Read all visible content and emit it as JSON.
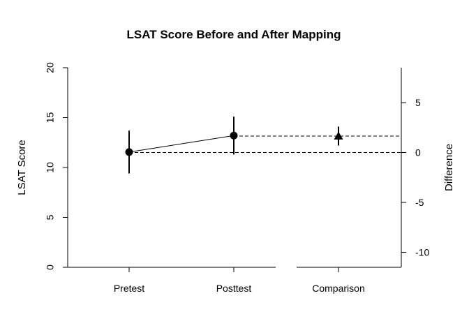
{
  "chart_data": {
    "type": "scatter",
    "title": "LSAT Score Before and After Mapping",
    "ylabel": "LSAT Score",
    "y2label": "Difference",
    "ylim": [
      0,
      20
    ],
    "y2lim": [
      -11.5,
      8.5
    ],
    "yticks": [
      "0",
      "5",
      "10",
      "15",
      "20"
    ],
    "yticks_values": [
      0,
      5,
      10,
      15,
      20
    ],
    "y2ticks": [
      "-10",
      "-5",
      "0",
      "5"
    ],
    "y2ticks_values": [
      -10,
      -5,
      0,
      5
    ],
    "categories": [
      "Pretest",
      "Posttest",
      "Comparison"
    ],
    "points": [
      {
        "category": "Pretest",
        "axis": "left",
        "value": 11.55,
        "ci": [
          9.4,
          13.7
        ],
        "marker": "circle"
      },
      {
        "category": "Posttest",
        "axis": "left",
        "value": 13.2,
        "ci": [
          11.3,
          15.1
        ],
        "marker": "circle"
      },
      {
        "category": "Comparison",
        "axis": "right",
        "value": 1.65,
        "ci": [
          0.7,
          2.6
        ],
        "marker": "triangle"
      }
    ],
    "reference_lines": [
      {
        "axis": "right",
        "value": 0,
        "style": "dashed",
        "from": "Pretest",
        "to": "Comparison-end"
      },
      {
        "axis": "right",
        "value": 1.65,
        "style": "dashed",
        "from": "Posttest",
        "to": "Comparison-end"
      }
    ],
    "grid": false,
    "legend": "none"
  }
}
